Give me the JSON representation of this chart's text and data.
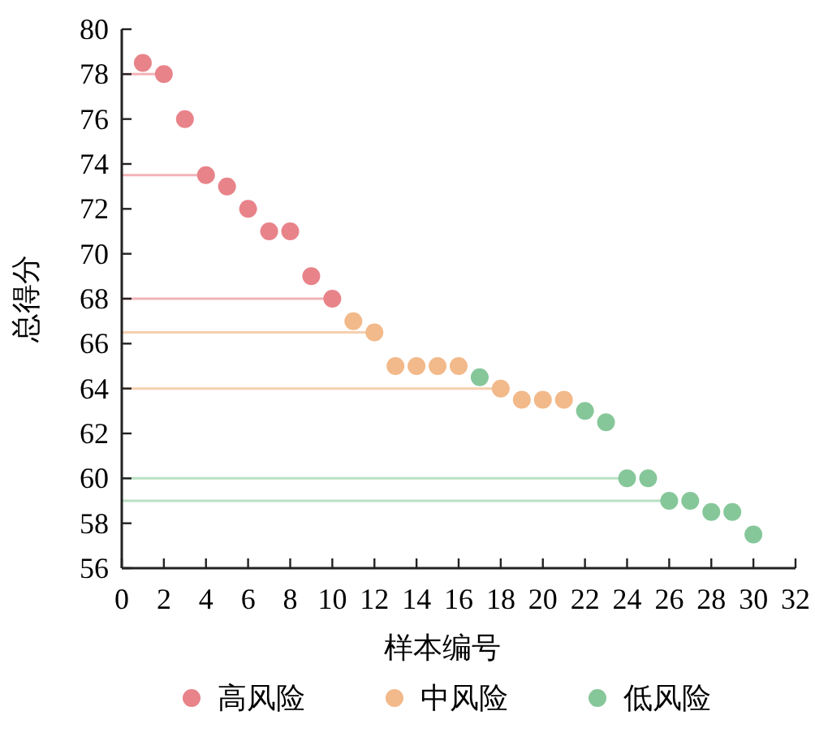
{
  "chart_data": {
    "type": "scatter",
    "xlabel": "样本编号",
    "ylabel": "总得分",
    "xlim": [
      0,
      32
    ],
    "xticks": [
      0,
      2,
      4,
      6,
      8,
      10,
      12,
      14,
      16,
      18,
      20,
      22,
      24,
      26,
      28,
      30,
      32
    ],
    "ylim": [
      56,
      80
    ],
    "yticks": [
      56,
      58,
      60,
      62,
      64,
      66,
      68,
      70,
      72,
      74,
      76,
      78,
      80
    ],
    "grid": false,
    "legend": "bottom",
    "marker": "circle",
    "series": [
      {
        "type": "line",
        "marker": "none",
        "color": "#f2b3b8",
        "x": [
          0,
          2
        ],
        "values": [
          78,
          78
        ]
      },
      {
        "type": "line",
        "marker": "none",
        "color": "#f2b3b8",
        "x": [
          0,
          4
        ],
        "values": [
          73.5,
          73.5
        ]
      },
      {
        "type": "line",
        "marker": "none",
        "color": "#f2b3b8",
        "x": [
          0,
          10
        ],
        "values": [
          68,
          68
        ]
      },
      {
        "type": "line",
        "marker": "none",
        "color": "#f5cfae",
        "x": [
          0,
          12
        ],
        "values": [
          66.5,
          66.5
        ]
      },
      {
        "type": "line",
        "marker": "none",
        "color": "#f5cfae",
        "x": [
          0,
          18
        ],
        "values": [
          64,
          64
        ]
      },
      {
        "type": "line",
        "marker": "none",
        "color": "#b9e0c4",
        "x": [
          0,
          24
        ],
        "values": [
          60,
          60
        ]
      },
      {
        "type": "line",
        "marker": "none",
        "color": "#b9e0c4",
        "x": [
          0,
          26
        ],
        "values": [
          59,
          59
        ]
      },
      {
        "name": "高风险",
        "color": "#e8838a",
        "x": [
          1,
          2,
          3,
          4,
          5,
          6,
          7,
          8,
          9,
          10
        ],
        "values": [
          78.5,
          78,
          76,
          73.5,
          73,
          72,
          71,
          71,
          69,
          68
        ]
      },
      {
        "name": "中风险",
        "color": "#f2b98a",
        "x": [
          11,
          12,
          13,
          14,
          15,
          16,
          18,
          19,
          20,
          21
        ],
        "values": [
          67,
          66.5,
          65,
          65,
          65,
          65,
          64,
          63.5,
          63.5,
          63.5
        ]
      },
      {
        "name": "低风险",
        "color": "#86c79a",
        "x": [
          17,
          22,
          23,
          24,
          25,
          26,
          27,
          28,
          29,
          30
        ],
        "values": [
          64.5,
          63,
          62.5,
          60,
          60,
          59,
          59,
          58.5,
          58.5,
          57.5
        ]
      }
    ]
  }
}
